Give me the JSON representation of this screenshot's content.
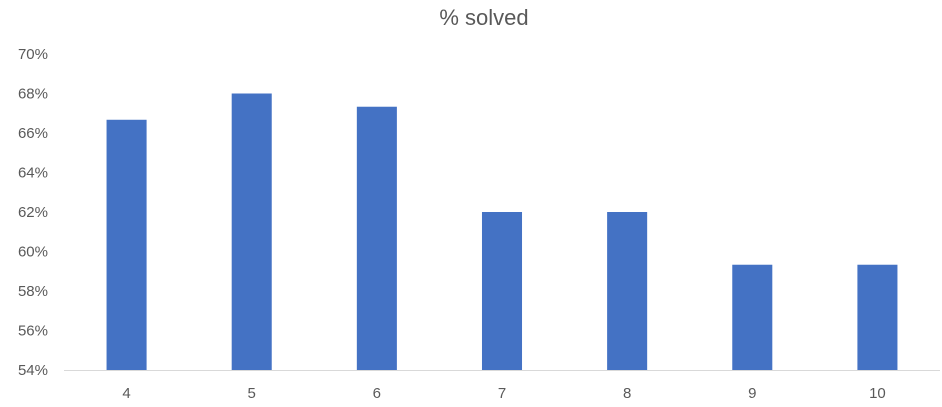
{
  "chart_data": {
    "type": "bar",
    "title": "% solved",
    "xlabel": "",
    "ylabel": "",
    "categories": [
      "4",
      "5",
      "6",
      "7",
      "8",
      "9",
      "10"
    ],
    "series": [
      {
        "values": [
          66.67,
          68.0,
          67.33,
          62.0,
          62.0,
          59.33,
          59.33
        ]
      }
    ],
    "ylim": [
      54,
      70
    ],
    "yticks": [
      54,
      56,
      58,
      60,
      62,
      64,
      66,
      68,
      70
    ],
    "ytick_labels": [
      "54%",
      "56%",
      "58%",
      "60%",
      "62%",
      "64%",
      "66%",
      "68%",
      "70%"
    ],
    "grid": false,
    "legend": "none",
    "colors": {
      "bar": "#4472C4",
      "axis": "#D9D9D9",
      "text": "#595959"
    }
  }
}
